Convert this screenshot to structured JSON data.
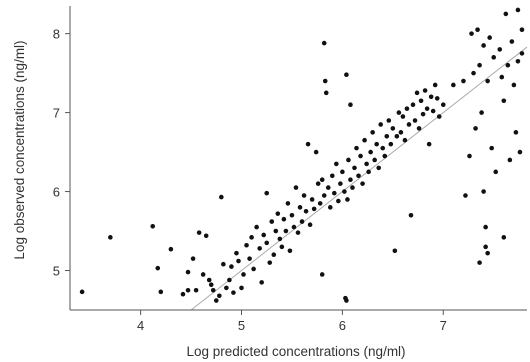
{
  "chart_data": {
    "type": "scatter",
    "title": "",
    "xlabel": "Log predicted concentrations (ng/ml)",
    "ylabel": "Log observed concentrations (ng/ml)",
    "xlim": [
      3.3,
      7.83
    ],
    "ylim": [
      4.5,
      8.35
    ],
    "xticks": [
      4,
      5,
      6,
      7
    ],
    "yticks": [
      5,
      6,
      7,
      8
    ],
    "grid": false,
    "legend": "none",
    "reference_line": {
      "slope": 1,
      "intercept": 0,
      "color": "#aaaaaa"
    },
    "point_color": "#111111",
    "series": [
      {
        "points": [
          [
            3.42,
            4.73
          ],
          [
            3.7,
            5.42
          ],
          [
            4.12,
            5.56
          ],
          [
            4.17,
            5.03
          ],
          [
            4.2,
            4.73
          ],
          [
            4.3,
            5.27
          ],
          [
            4.42,
            4.7
          ],
          [
            4.47,
            4.75
          ],
          [
            4.47,
            4.98
          ],
          [
            4.52,
            5.15
          ],
          [
            4.55,
            4.75
          ],
          [
            4.58,
            5.48
          ],
          [
            4.62,
            4.95
          ],
          [
            4.65,
            5.44
          ],
          [
            4.68,
            4.88
          ],
          [
            4.7,
            4.82
          ],
          [
            4.72,
            4.75
          ],
          [
            4.75,
            4.62
          ],
          [
            4.78,
            4.68
          ],
          [
            4.8,
            5.93
          ],
          [
            4.82,
            5.08
          ],
          [
            4.85,
            4.78
          ],
          [
            4.88,
            4.88
          ],
          [
            4.9,
            5.05
          ],
          [
            4.92,
            4.72
          ],
          [
            4.95,
            5.22
          ],
          [
            4.97,
            5.12
          ],
          [
            5.0,
            4.78
          ],
          [
            5.02,
            4.95
          ],
          [
            5.05,
            5.32
          ],
          [
            5.08,
            5.15
          ],
          [
            5.1,
            5.42
          ],
          [
            5.12,
            5.02
          ],
          [
            5.15,
            5.55
          ],
          [
            5.18,
            5.28
          ],
          [
            5.2,
            4.85
          ],
          [
            5.22,
            5.45
          ],
          [
            5.25,
            5.35
          ],
          [
            5.25,
            5.98
          ],
          [
            5.28,
            5.1
          ],
          [
            5.3,
            5.62
          ],
          [
            5.32,
            5.2
          ],
          [
            5.34,
            5.5
          ],
          [
            5.36,
            5.72
          ],
          [
            5.38,
            5.4
          ],
          [
            5.4,
            5.3
          ],
          [
            5.42,
            5.65
          ],
          [
            5.44,
            5.5
          ],
          [
            5.46,
            5.85
          ],
          [
            5.48,
            5.25
          ],
          [
            5.5,
            5.7
          ],
          [
            5.52,
            5.55
          ],
          [
            5.54,
            6.05
          ],
          [
            5.56,
            5.48
          ],
          [
            5.58,
            5.8
          ],
          [
            5.6,
            5.62
          ],
          [
            5.62,
            5.95
          ],
          [
            5.64,
            5.75
          ],
          [
            5.66,
            6.6
          ],
          [
            5.68,
            5.58
          ],
          [
            5.7,
            5.9
          ],
          [
            5.72,
            5.78
          ],
          [
            5.74,
            6.5
          ],
          [
            5.76,
            6.1
          ],
          [
            5.78,
            5.85
          ],
          [
            5.8,
            6.15
          ],
          [
            5.8,
            4.95
          ],
          [
            5.82,
            5.95
          ],
          [
            5.82,
            7.88
          ],
          [
            5.83,
            7.4
          ],
          [
            5.84,
            7.25
          ],
          [
            5.86,
            6.05
          ],
          [
            5.88,
            5.8
          ],
          [
            5.9,
            6.2
          ],
          [
            5.92,
            5.98
          ],
          [
            5.94,
            6.35
          ],
          [
            5.96,
            5.88
          ],
          [
            5.98,
            6.1
          ],
          [
            6.0,
            6.25
          ],
          [
            6.02,
            6.0
          ],
          [
            6.03,
            4.65
          ],
          [
            6.04,
            4.62
          ],
          [
            6.04,
            7.48
          ],
          [
            6.05,
            5.9
          ],
          [
            6.06,
            6.4
          ],
          [
            6.08,
            6.15
          ],
          [
            6.08,
            7.1
          ],
          [
            6.1,
            6.05
          ],
          [
            6.12,
            6.3
          ],
          [
            6.14,
            6.55
          ],
          [
            6.16,
            6.2
          ],
          [
            6.18,
            6.45
          ],
          [
            6.2,
            6.1
          ],
          [
            6.22,
            6.65
          ],
          [
            6.24,
            6.35
          ],
          [
            6.26,
            6.25
          ],
          [
            6.28,
            6.5
          ],
          [
            6.3,
            6.75
          ],
          [
            6.32,
            6.4
          ],
          [
            6.34,
            6.6
          ],
          [
            6.36,
            6.3
          ],
          [
            6.38,
            6.85
          ],
          [
            6.4,
            6.55
          ],
          [
            6.42,
            6.45
          ],
          [
            6.44,
            6.7
          ],
          [
            6.46,
            6.9
          ],
          [
            6.48,
            6.6
          ],
          [
            6.5,
            6.8
          ],
          [
            6.52,
            5.25
          ],
          [
            6.54,
            6.7
          ],
          [
            6.56,
            7.0
          ],
          [
            6.58,
            6.75
          ],
          [
            6.6,
            6.95
          ],
          [
            6.62,
            6.65
          ],
          [
            6.64,
            7.05
          ],
          [
            6.66,
            6.85
          ],
          [
            6.68,
            5.7
          ],
          [
            6.7,
            7.1
          ],
          [
            6.72,
            6.9
          ],
          [
            6.74,
            7.25
          ],
          [
            6.76,
            6.8
          ],
          [
            6.78,
            7.15
          ],
          [
            6.8,
            6.98
          ],
          [
            6.82,
            7.28
          ],
          [
            6.84,
            7.05
          ],
          [
            6.86,
            6.6
          ],
          [
            6.88,
            7.2
          ],
          [
            6.9,
            7.02
          ],
          [
            6.92,
            7.35
          ],
          [
            6.94,
            7.18
          ],
          [
            6.96,
            6.95
          ],
          [
            7.0,
            7.1
          ],
          [
            7.1,
            7.35
          ],
          [
            7.2,
            7.4
          ],
          [
            7.22,
            5.95
          ],
          [
            7.26,
            6.45
          ],
          [
            7.28,
            8.0
          ],
          [
            7.3,
            7.5
          ],
          [
            7.32,
            6.8
          ],
          [
            7.34,
            8.05
          ],
          [
            7.36,
            7.6
          ],
          [
            7.36,
            5.1
          ],
          [
            7.38,
            7.0
          ],
          [
            7.4,
            7.85
          ],
          [
            7.4,
            6.0
          ],
          [
            7.42,
            5.55
          ],
          [
            7.42,
            5.3
          ],
          [
            7.44,
            7.4
          ],
          [
            7.44,
            5.22
          ],
          [
            7.46,
            7.95
          ],
          [
            7.48,
            6.55
          ],
          [
            7.5,
            7.7
          ],
          [
            7.52,
            6.25
          ],
          [
            7.56,
            7.8
          ],
          [
            7.58,
            7.45
          ],
          [
            7.6,
            7.15
          ],
          [
            7.6,
            5.42
          ],
          [
            7.62,
            8.25
          ],
          [
            7.64,
            7.6
          ],
          [
            7.66,
            6.4
          ],
          [
            7.68,
            7.9
          ],
          [
            7.7,
            7.35
          ],
          [
            7.72,
            6.75
          ],
          [
            7.74,
            8.3
          ],
          [
            7.74,
            7.65
          ],
          [
            7.76,
            6.5
          ],
          [
            7.78,
            7.75
          ],
          [
            7.78,
            8.05
          ]
        ]
      }
    ]
  }
}
